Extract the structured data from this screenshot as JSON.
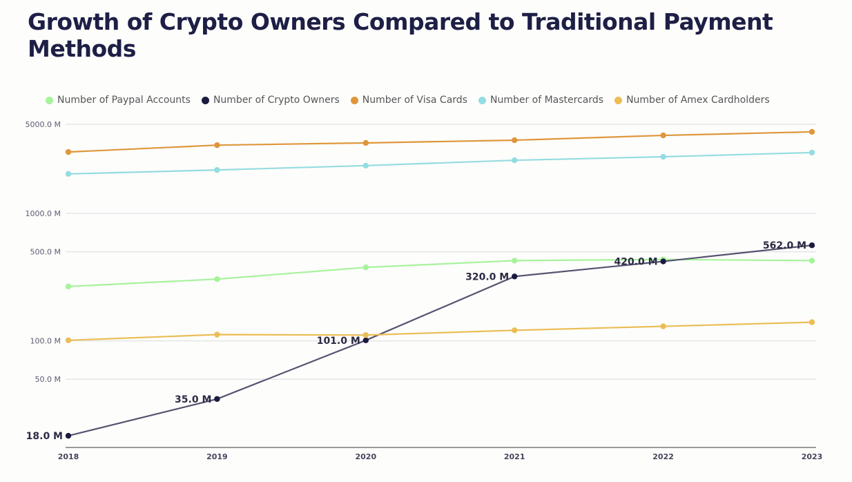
{
  "chart_data": {
    "type": "line",
    "title": "Growth of Crypto Owners Compared to Traditional Payment Methods",
    "xlabel": "",
    "ylabel": "",
    "y_scale": "log",
    "ylim": [
      15,
      5000
    ],
    "grid": true,
    "legend_placement": "top",
    "x": [
      "2018",
      "2019",
      "2020",
      "2021",
      "2022",
      "2023"
    ],
    "y_ticks": [
      {
        "value": 5000,
        "label": "5000.0 M"
      },
      {
        "value": 1000,
        "label": "1000.0 M"
      },
      {
        "value": 500,
        "label": "500.0 M"
      },
      {
        "value": 100,
        "label": "100.0 M"
      },
      {
        "value": 50,
        "label": "50.0 M"
      }
    ],
    "series": [
      {
        "name": "Number of Paypal Accounts",
        "color": "#a6f39a",
        "values": [
          267,
          305,
          377,
          426,
          435,
          426
        ]
      },
      {
        "name": "Number of Crypto Owners",
        "color": "#1b1a3f",
        "line_color": "#55526f",
        "values": [
          18,
          35,
          101,
          320,
          420,
          562
        ],
        "data_labels": [
          "18.0 M",
          "35.0 M",
          "101.0 M",
          "320.0 M",
          "420.0 M",
          "562.0 M"
        ]
      },
      {
        "name": "Number of Visa Cards",
        "color": "#df963a",
        "values": [
          3030,
          3430,
          3570,
          3750,
          4090,
          4360
        ]
      },
      {
        "name": "Number of Mastercards",
        "color": "#94dce0",
        "values": [
          2040,
          2190,
          2370,
          2610,
          2780,
          3000
        ]
      },
      {
        "name": "Number of Amex Cardholders",
        "color": "#ebbd55",
        "values": [
          101,
          112,
          111,
          121,
          130,
          140
        ]
      }
    ]
  }
}
